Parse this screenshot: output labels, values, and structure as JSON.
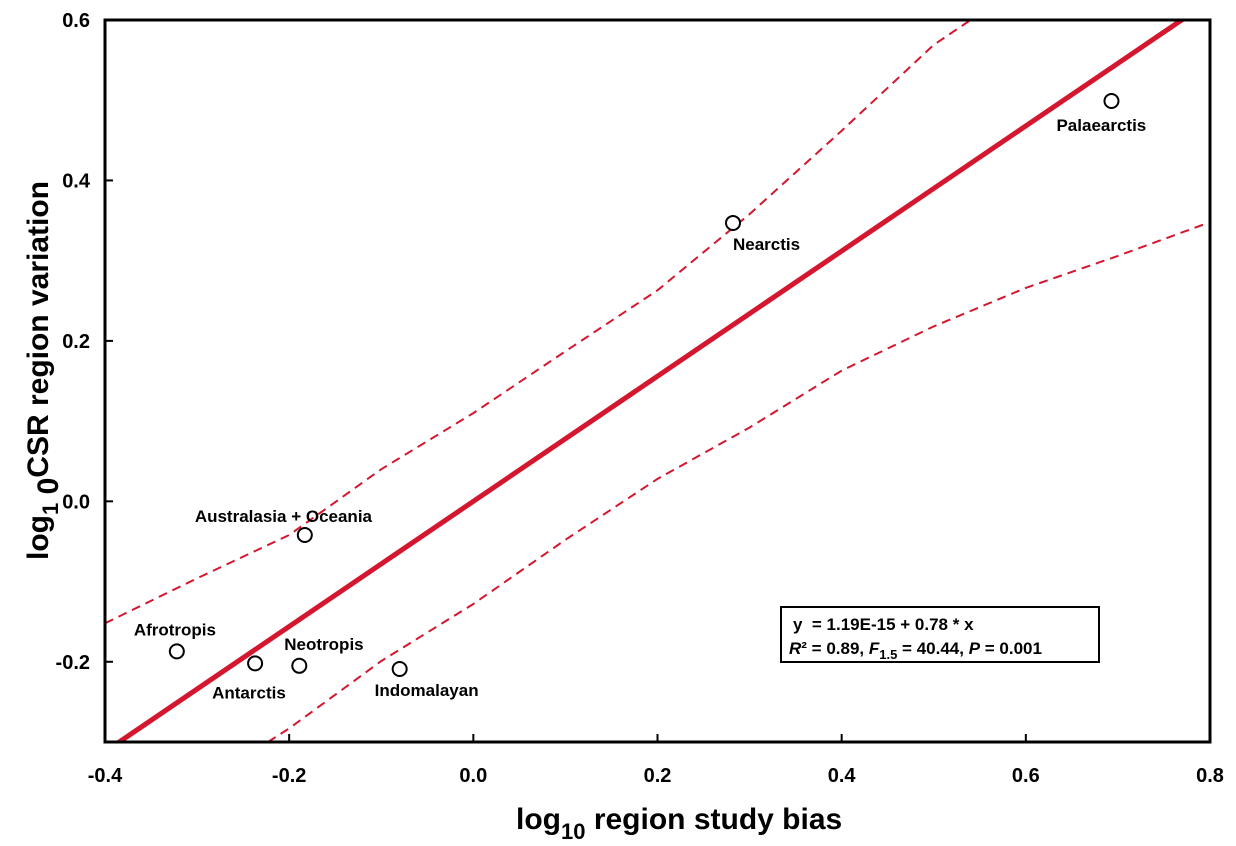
{
  "chart_data": {
    "type": "scatter",
    "title": "",
    "xlabel": {
      "main": "log",
      "sub": "10",
      "rest": " region study  bias"
    },
    "ylabel": {
      "main": "log",
      "sub": "1",
      "mid": " 0",
      "rest": "CSR region variation"
    },
    "xlim": [
      -0.4,
      0.8
    ],
    "ylim": [
      -0.3,
      0.6
    ],
    "x_ticks": [
      "-0.4",
      "-0.2",
      "0.0",
      "0.2",
      "0.4",
      "0.6",
      "0.8"
    ],
    "y_ticks": [
      "-0.2",
      "0.0",
      "0.2",
      "0.4",
      "0.6"
    ],
    "grid": false,
    "points": [
      {
        "label": "Palaearctis",
        "x": 0.693,
        "y": 0.499
      },
      {
        "label": "Nearctis",
        "x": 0.282,
        "y": 0.347
      },
      {
        "label": "Australasia + Oceania",
        "x": -0.183,
        "y": -0.042
      },
      {
        "label": "Afrotropis",
        "x": -0.322,
        "y": -0.187
      },
      {
        "label": "Antarctis",
        "x": -0.237,
        "y": -0.202
      },
      {
        "label": "Neotropis",
        "x": -0.189,
        "y": -0.205
      },
      {
        "label": "Indomalayan",
        "x": -0.08,
        "y": -0.209
      }
    ],
    "regression": {
      "intercept": 1.19e-15,
      "slope": 0.78,
      "color": "#d4172e"
    },
    "confidence_band": {
      "color": "#d4172e",
      "upper": [
        [
          -0.4,
          -0.152
        ],
        [
          -0.3,
          -0.096
        ],
        [
          -0.2,
          -0.042
        ],
        [
          -0.1,
          0.04
        ],
        [
          0.0,
          0.11
        ],
        [
          0.1,
          0.187
        ],
        [
          0.2,
          0.263
        ],
        [
          0.3,
          0.358
        ],
        [
          0.4,
          0.462
        ],
        [
          0.5,
          0.569
        ],
        [
          0.54,
          0.6
        ]
      ],
      "lower": [
        [
          -0.223,
          -0.3
        ],
        [
          -0.2,
          -0.283
        ],
        [
          -0.1,
          -0.199
        ],
        [
          0.0,
          -0.128
        ],
        [
          0.1,
          -0.048
        ],
        [
          0.2,
          0.028
        ],
        [
          0.3,
          0.092
        ],
        [
          0.4,
          0.163
        ],
        [
          0.5,
          0.218
        ],
        [
          0.6,
          0.266
        ],
        [
          0.7,
          0.306
        ],
        [
          0.8,
          0.348
        ]
      ]
    },
    "equation": {
      "line1": "y  = 1.19E-15 + 0.78 * x",
      "r_sym": "R",
      "r_rest": "² = 0.89, ",
      "f_sym": "F",
      "f_sub": "1.5",
      "f_rest": " = 40.44, ",
      "p_sym": "P",
      "p_rest": " = 0.001"
    }
  }
}
